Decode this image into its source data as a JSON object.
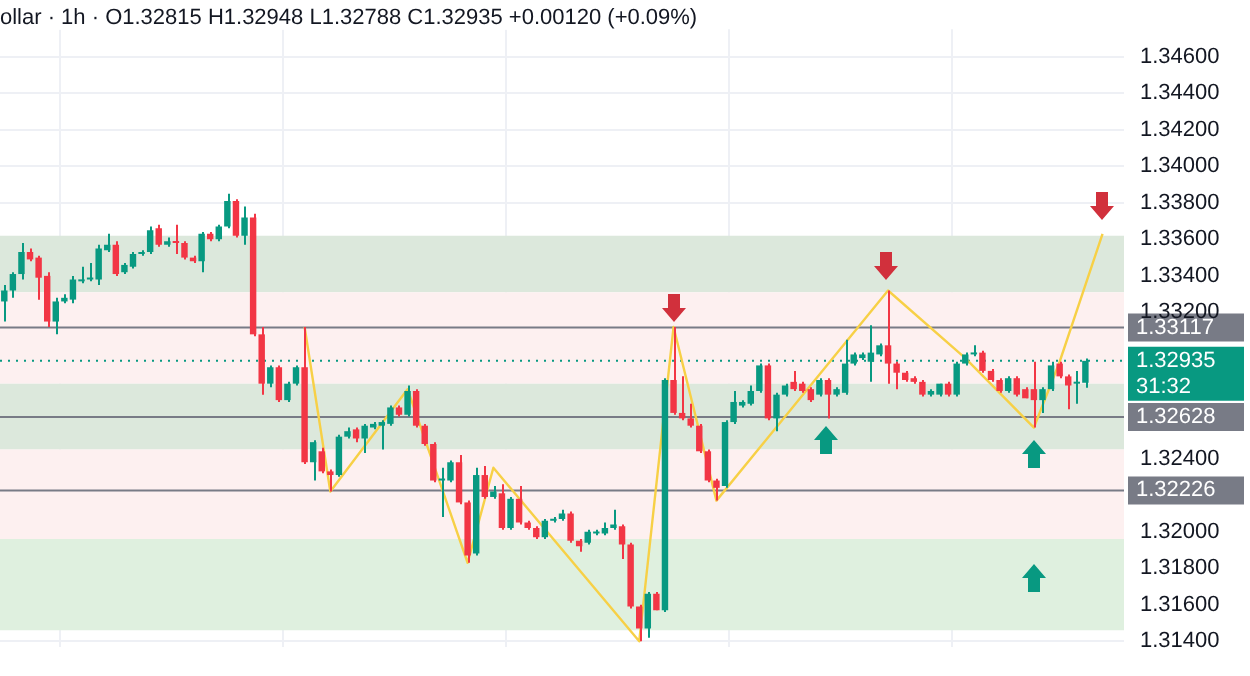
{
  "chart_data": {
    "type": "candlestick",
    "title": "ollar · 1h · O1.32815 H1.32948 L1.32788 C1.32935 +0.00120 (+0.09%)",
    "categories": [
      null,
      null,
      null,
      null,
      null,
      null,
      null,
      null,
      null,
      null,
      null,
      null,
      null,
      null,
      null,
      null,
      null,
      null,
      null,
      null,
      null,
      null,
      null,
      null,
      null,
      null,
      null,
      null,
      null,
      null,
      null,
      null,
      null,
      null,
      null,
      null,
      null,
      null,
      null,
      null,
      null,
      null,
      null,
      null,
      null,
      null,
      null,
      null,
      null,
      null,
      null,
      null,
      null,
      null,
      null,
      null,
      null,
      null,
      null,
      null,
      null,
      null,
      null,
      null,
      null,
      null,
      null,
      null,
      null,
      null,
      null,
      null,
      null,
      null,
      null,
      null,
      null,
      null,
      null,
      null,
      null,
      null,
      null,
      null,
      null,
      null,
      null,
      null,
      null,
      null,
      null,
      null,
      null,
      null,
      null,
      null,
      null,
      null,
      null,
      null,
      null,
      null,
      null,
      null,
      null,
      null,
      null,
      null,
      null,
      null,
      null,
      null,
      null,
      null,
      null,
      null,
      null,
      null,
      null,
      null,
      null,
      null,
      null,
      null,
      null,
      null,
      null,
      null,
      null,
      null,
      null
    ],
    "ohlc": [
      [
        1.3326,
        1.3335,
        1.3315,
        1.3332
      ],
      [
        1.3332,
        1.3342,
        1.3328,
        1.3341
      ],
      [
        1.3341,
        1.3358,
        1.3338,
        1.3353
      ],
      [
        1.3353,
        1.3355,
        1.3348,
        1.3349
      ],
      [
        1.335,
        1.3351,
        1.3327,
        1.3339
      ],
      [
        1.334,
        1.3342,
        1.3312,
        1.3315
      ],
      [
        1.3315,
        1.3328,
        1.3308,
        1.3326
      ],
      [
        1.3326,
        1.333,
        1.3325,
        1.3328
      ],
      [
        1.3327,
        1.334,
        1.3325,
        1.3338
      ],
      [
        1.3337,
        1.3345,
        1.3336,
        1.3338
      ],
      [
        1.3338,
        1.3347,
        1.3337,
        1.3339
      ],
      [
        1.3338,
        1.3357,
        1.3335,
        1.3355
      ],
      [
        1.3354,
        1.3363,
        1.3353,
        1.3357
      ],
      [
        1.3357,
        1.3359,
        1.334,
        1.3341
      ],
      [
        1.3342,
        1.3347,
        1.3341,
        1.3346
      ],
      [
        1.3345,
        1.3353,
        1.3344,
        1.3352
      ],
      [
        1.3352,
        1.3354,
        1.3351,
        1.3353
      ],
      [
        1.3353,
        1.3367,
        1.3352,
        1.3365
      ],
      [
        1.3366,
        1.3368,
        1.3356,
        1.3357
      ],
      [
        1.3357,
        1.3361,
        1.3356,
        1.3359
      ],
      [
        1.3359,
        1.3368,
        1.3352,
        1.3358
      ],
      [
        1.3358,
        1.3359,
        1.3349,
        1.335
      ],
      [
        1.335,
        1.3351,
        1.3347,
        1.3348
      ],
      [
        1.3348,
        1.3364,
        1.3342,
        1.3363
      ],
      [
        1.3363,
        1.3364,
        1.3359,
        1.336
      ],
      [
        1.336,
        1.3368,
        1.3359,
        1.3367
      ],
      [
        1.3367,
        1.3385,
        1.3366,
        1.3381
      ],
      [
        1.3381,
        1.3382,
        1.3361,
        1.3362
      ],
      [
        1.3362,
        1.3378,
        1.3357,
        1.3372
      ],
      [
        1.3372,
        1.3374,
        1.3307,
        1.3308
      ],
      [
        1.3308,
        1.3312,
        1.3275,
        1.3281
      ],
      [
        1.3281,
        1.3291,
        1.3279,
        1.329
      ],
      [
        1.329,
        1.3291,
        1.3271,
        1.3272
      ],
      [
        1.3272,
        1.3282,
        1.3271,
        1.3281
      ],
      [
        1.3281,
        1.3291,
        1.328,
        1.329
      ],
      [
        1.329,
        1.3312,
        1.3237,
        1.3238
      ],
      [
        1.3238,
        1.325,
        1.3228,
        1.3249
      ],
      [
        1.3244,
        1.3246,
        1.3232,
        1.3233
      ],
      [
        1.3233,
        1.3234,
        1.3222,
        1.3231
      ],
      [
        1.3231,
        1.3253,
        1.323,
        1.3252
      ],
      [
        1.3252,
        1.3257,
        1.3251,
        1.3255
      ],
      [
        1.3256,
        1.3257,
        1.3249,
        1.3251
      ],
      [
        1.3251,
        1.3259,
        1.3243,
        1.3258
      ],
      [
        1.3257,
        1.326,
        1.3256,
        1.3259
      ],
      [
        1.3258,
        1.3261,
        1.3245,
        1.326
      ],
      [
        1.3259,
        1.3269,
        1.3258,
        1.3268
      ],
      [
        1.3268,
        1.3269,
        1.3263,
        1.3264
      ],
      [
        1.3264,
        1.328,
        1.3263,
        1.3277
      ],
      [
        1.3277,
        1.3278,
        1.3257,
        1.3258
      ],
      [
        1.3258,
        1.3259,
        1.3247,
        1.3248
      ],
      [
        1.3248,
        1.3249,
        1.3227,
        1.3228
      ],
      [
        1.3228,
        1.3235,
        1.3208,
        1.3229
      ],
      [
        1.3228,
        1.3239,
        1.3227,
        1.3238
      ],
      [
        1.3238,
        1.3242,
        1.3215,
        1.3216
      ],
      [
        1.3216,
        1.3217,
        1.3183,
        1.3187
      ],
      [
        1.3188,
        1.3235,
        1.3187,
        1.3231
      ],
      [
        1.3231,
        1.3236,
        1.3218,
        1.3219
      ],
      [
        1.3219,
        1.3225,
        1.3218,
        1.3222
      ],
      [
        1.3221,
        1.3226,
        1.3201,
        1.3202
      ],
      [
        1.3202,
        1.3219,
        1.3201,
        1.3218
      ],
      [
        1.3218,
        1.3225,
        1.3204,
        1.3205
      ],
      [
        1.3205,
        1.3206,
        1.3201,
        1.3202
      ],
      [
        1.3202,
        1.3203,
        1.3196,
        1.3197
      ],
      [
        1.3197,
        1.3207,
        1.3196,
        1.3206
      ],
      [
        1.3206,
        1.3208,
        1.3205,
        1.3207
      ],
      [
        1.3207,
        1.3212,
        1.3206,
        1.321
      ],
      [
        1.321,
        1.3211,
        1.3194,
        1.3195
      ],
      [
        1.3195,
        1.3196,
        1.3189,
        1.3192
      ],
      [
        1.3194,
        1.3201,
        1.3193,
        1.32
      ],
      [
        1.3199,
        1.3201,
        1.3198,
        1.32
      ],
      [
        1.3199,
        1.3205,
        1.3198,
        1.3202
      ],
      [
        1.3202,
        1.3212,
        1.3201,
        1.3204
      ],
      [
        1.3203,
        1.3204,
        1.3185,
        1.3193
      ],
      [
        1.3193,
        1.3194,
        1.3158,
        1.3159
      ],
      [
        1.3159,
        1.316,
        1.314,
        1.3147
      ],
      [
        1.3147,
        1.3167,
        1.3142,
        1.3166
      ],
      [
        1.3166,
        1.3167,
        1.3157,
        1.3157
      ],
      [
        1.3157,
        1.3284,
        1.3156,
        1.3283
      ],
      [
        1.3283,
        1.3312,
        1.3264,
        1.3265
      ],
      [
        1.3265,
        1.3285,
        1.3261,
        1.3262
      ],
      [
        1.3262,
        1.327,
        1.3257,
        1.3258
      ],
      [
        1.3258,
        1.3259,
        1.3243,
        1.3244
      ],
      [
        1.3244,
        1.3245,
        1.3227,
        1.3228
      ],
      [
        1.3228,
        1.3229,
        1.3217,
        1.3224
      ],
      [
        1.3225,
        1.3261,
        1.3224,
        1.326
      ],
      [
        1.326,
        1.3277,
        1.3259,
        1.3271
      ],
      [
        1.3269,
        1.3272,
        1.3268,
        1.3271
      ],
      [
        1.327,
        1.328,
        1.3269,
        1.3277
      ],
      [
        1.3277,
        1.3292,
        1.3276,
        1.3291
      ],
      [
        1.3291,
        1.3292,
        1.3261,
        1.3262
      ],
      [
        1.3262,
        1.3276,
        1.3255,
        1.3275
      ],
      [
        1.3275,
        1.3281,
        1.3274,
        1.328
      ],
      [
        1.3282,
        1.3288,
        1.3277,
        1.3278
      ],
      [
        1.3281,
        1.3282,
        1.3276,
        1.3277
      ],
      [
        1.3278,
        1.3279,
        1.3271,
        1.3272
      ],
      [
        1.3275,
        1.3284,
        1.3274,
        1.3283
      ],
      [
        1.3283,
        1.3284,
        1.3262,
        1.3275
      ],
      [
        1.3275,
        1.3279,
        1.3274,
        1.3278
      ],
      [
        1.3276,
        1.3305,
        1.3275,
        1.3292
      ],
      [
        1.3292,
        1.3298,
        1.3291,
        1.3297
      ],
      [
        1.3295,
        1.3298,
        1.3294,
        1.3297
      ],
      [
        1.3293,
        1.3313,
        1.3282,
        1.3298
      ],
      [
        1.3297,
        1.3303,
        1.3296,
        1.3302
      ],
      [
        1.3302,
        1.3332,
        1.3281,
        1.3292
      ],
      [
        1.3292,
        1.3293,
        1.3278,
        1.3287
      ],
      [
        1.3287,
        1.3288,
        1.3282,
        1.3283
      ],
      [
        1.3284,
        1.3285,
        1.3281,
        1.3282
      ],
      [
        1.3282,
        1.3283,
        1.3274,
        1.3275
      ],
      [
        1.3275,
        1.3278,
        1.3274,
        1.3277
      ],
      [
        1.3275,
        1.3281,
        1.3274,
        1.3281
      ],
      [
        1.3281,
        1.3282,
        1.3274,
        1.3275
      ],
      [
        1.3275,
        1.3293,
        1.3274,
        1.3292
      ],
      [
        1.3292,
        1.3298,
        1.3291,
        1.3297
      ],
      [
        1.3297,
        1.3302,
        1.3296,
        1.3298
      ],
      [
        1.3298,
        1.3299,
        1.3287,
        1.3288
      ],
      [
        1.3288,
        1.3289,
        1.3282,
        1.3283
      ],
      [
        1.3283,
        1.3284,
        1.3276,
        1.3277
      ],
      [
        1.3277,
        1.3285,
        1.3276,
        1.3284
      ],
      [
        1.3284,
        1.3285,
        1.3274,
        1.3275
      ],
      [
        1.3278,
        1.3279,
        1.3273,
        1.3273
      ],
      [
        1.3278,
        1.3293,
        1.3257,
        1.3272
      ],
      [
        1.3272,
        1.3279,
        1.3265,
        1.3278
      ],
      [
        1.3278,
        1.3293,
        1.3277,
        1.3291
      ],
      [
        1.3292,
        1.3293,
        1.3284,
        1.3285
      ],
      [
        1.3285,
        1.3286,
        1.3267,
        1.328
      ],
      [
        1.3281,
        1.3288,
        1.327,
        1.3281
      ],
      [
        1.32815,
        1.32948,
        1.32788,
        1.32935
      ],
      null,
      null,
      null,
      null
    ],
    "colors": [
      "#089981",
      "#089981",
      "#089981",
      "#f23645",
      "#f23645",
      "#f23645",
      "#089981",
      "#089981",
      "#089981",
      "#089981",
      "#089981",
      "#089981",
      "#089981",
      "#f23645",
      "#089981",
      "#089981",
      "#089981",
      "#089981",
      "#f23645",
      "#089981",
      "#f23645",
      "#f23645",
      "#f23645",
      "#089981",
      "#f23645",
      "#089981",
      "#089981",
      "#f23645",
      "#089981",
      "#f23645",
      "#f23645",
      "#089981",
      "#f23645",
      "#089981",
      "#089981",
      "#f23645",
      "#089981",
      "#f23645",
      "#f23645",
      "#089981",
      "#089981",
      "#f23645",
      "#089981",
      "#089981",
      "#089981",
      "#089981",
      "#f23645",
      "#089981",
      "#f23645",
      "#f23645",
      "#f23645",
      "#089981",
      "#089981",
      "#f23645",
      "#f23645",
      "#089981",
      "#f23645",
      "#089981",
      "#f23645",
      "#089981",
      "#f23645",
      "#f23645",
      "#f23645",
      "#089981",
      "#089981",
      "#089981",
      "#f23645",
      "#f23645",
      "#089981",
      "#089981",
      "#089981",
      "#089981",
      "#f23645",
      "#f23645",
      "#f23645",
      "#089981",
      "#f23645",
      "#089981",
      "#f23645",
      "#f23645",
      "#f23645",
      "#f23645",
      "#f23645",
      "#f23645",
      "#089981",
      "#089981",
      "#089981",
      "#089981",
      "#089981",
      "#f23645",
      "#089981",
      "#089981",
      "#f23645",
      "#f23645",
      "#f23645",
      "#089981",
      "#f23645",
      "#089981",
      "#089981",
      "#089981",
      "#089981",
      "#089981",
      "#089981",
      "#f23645",
      "#f23645",
      "#f23645",
      "#f23645",
      "#f23645",
      "#089981",
      "#089981",
      "#f23645",
      "#089981",
      "#089981",
      "#089981",
      "#f23645",
      "#f23645",
      "#f23645",
      "#089981",
      "#f23645",
      "#f23645",
      "#f23645",
      "#089981",
      "#089981",
      "#f23645",
      "#f23645",
      "#089981",
      "#089981",
      null,
      null,
      null,
      null
    ],
    "series": [
      {
        "type": "line",
        "color": "#f7d046",
        "values": [
          null,
          null,
          null,
          null,
          null,
          null,
          null,
          null,
          null,
          null,
          null,
          null,
          null,
          null,
          null,
          null,
          null,
          null,
          null,
          null,
          null,
          null,
          null,
          null,
          null,
          null,
          null,
          null,
          null,
          null,
          null,
          null,
          null,
          null,
          null,
          1.3312,
          null,
          null,
          1.3222,
          null,
          null,
          null,
          null,
          null,
          null,
          null,
          null,
          1.3278,
          null,
          null,
          null,
          null,
          null,
          null,
          1.3183,
          null,
          null,
          1.3235,
          null,
          null,
          null,
          null,
          null,
          null,
          null,
          null,
          null,
          null,
          null,
          null,
          null,
          null,
          null,
          null,
          1.314,
          null,
          null,
          null,
          1.3312,
          null,
          null,
          null,
          null,
          1.3217,
          null,
          null,
          null,
          null,
          null,
          null,
          null,
          null,
          null,
          null,
          null,
          null,
          null,
          null,
          null,
          null,
          null,
          null,
          null,
          1.3332,
          null,
          null,
          null,
          null,
          null,
          null,
          null,
          null,
          1.3295,
          null,
          null,
          null,
          null,
          null,
          null,
          null,
          1.3257,
          null,
          null,
          1.3293,
          null,
          null,
          null,
          null,
          1.3363,
          null,
          null
        ]
      }
    ],
    "ylim": [
      1.3137,
      1.3475
    ],
    "yticks": [
      {
        "value": 1.314,
        "label": "1.31400"
      },
      {
        "value": 1.316,
        "label": "1.31600"
      },
      {
        "value": 1.318,
        "label": "1.31800"
      },
      {
        "value": 1.32,
        "label": "1.32000"
      },
      {
        "value": 1.324,
        "label": "1.32400"
      },
      {
        "value": 1.332,
        "label": "1.33200"
      },
      {
        "value": 1.334,
        "label": "1.33400"
      },
      {
        "value": 1.336,
        "label": "1.33600"
      },
      {
        "value": 1.338,
        "label": "1.33800"
      },
      {
        "value": 1.34,
        "label": "1.34000"
      },
      {
        "value": 1.342,
        "label": "1.34200"
      },
      {
        "value": 1.344,
        "label": "1.34400"
      },
      {
        "value": 1.346,
        "label": "1.34600"
      }
    ],
    "ref_lines": [
      {
        "axis": "y",
        "value": 1.32935,
        "label": "1.32935",
        "color": "#089981",
        "line_style": "dotted"
      },
      {
        "axis": "y",
        "value": 1.33117,
        "label": "1.33117",
        "color": "#787b86"
      },
      {
        "axis": "y",
        "value": 1.32628,
        "label": "1.32628",
        "color": "#787b86"
      },
      {
        "axis": "y",
        "value": 1.32226,
        "label": "1.32226",
        "color": "#787b86"
      }
    ],
    "bands": [
      {
        "axis": "y",
        "from": 1.3331,
        "to": 1.3362,
        "color": "#dce8dc"
      },
      {
        "axis": "y",
        "from": 1.3281,
        "to": 1.3331,
        "color": "#fdf0f0"
      },
      {
        "axis": "y",
        "from": 1.3245,
        "to": 1.3281,
        "color": "#dce8dc"
      },
      {
        "axis": "y",
        "from": 1.3196,
        "to": 1.3245,
        "color": "#fdf0f0"
      },
      {
        "axis": "y",
        "from": 1.3146,
        "to": 1.3196,
        "color": "#dff0df"
      }
    ],
    "annotations": [
      "31:32"
    ],
    "grid": true,
    "legend": false,
    "tick_labels": "y"
  }
}
